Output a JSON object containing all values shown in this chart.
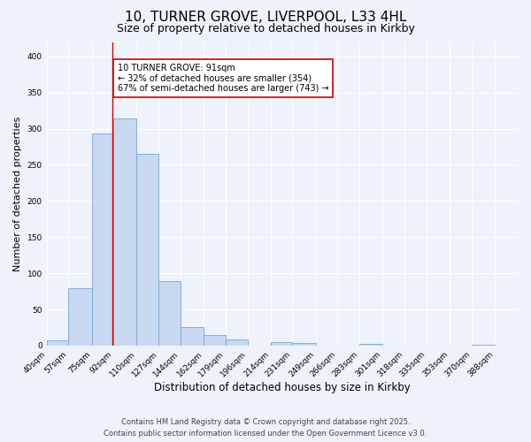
{
  "title": "10, TURNER GROVE, LIVERPOOL, L33 4HL",
  "subtitle": "Size of property relative to detached houses in Kirkby",
  "xlabel": "Distribution of detached houses by size in Kirkby",
  "ylabel": "Number of detached properties",
  "bin_labels": [
    "40sqm",
    "57sqm",
    "75sqm",
    "92sqm",
    "110sqm",
    "127sqm",
    "144sqm",
    "162sqm",
    "179sqm",
    "196sqm",
    "214sqm",
    "231sqm",
    "249sqm",
    "266sqm",
    "283sqm",
    "301sqm",
    "318sqm",
    "335sqm",
    "353sqm",
    "370sqm",
    "388sqm"
  ],
  "bar_heights": [
    7,
    79,
    293,
    314,
    265,
    89,
    26,
    15,
    8,
    0,
    5,
    4,
    0,
    0,
    2,
    0,
    0,
    0,
    0,
    1,
    0
  ],
  "bin_edges": [
    40,
    57,
    75,
    92,
    110,
    127,
    144,
    162,
    179,
    196,
    214,
    231,
    249,
    266,
    283,
    301,
    318,
    335,
    353,
    370,
    388,
    406
  ],
  "bar_color": "#c8d8f0",
  "bar_edge_color": "#7aa8d0",
  "vline_x": 91,
  "vline_color": "#cc0000",
  "annotation_title": "10 TURNER GROVE: 91sqm",
  "annotation_line1": "← 32% of detached houses are smaller (354)",
  "annotation_line2": "67% of semi-detached houses are larger (743) →",
  "annotation_box_color": "#ffffff",
  "annotation_box_edge": "#cc0000",
  "ylim": [
    0,
    420
  ],
  "yticks": [
    0,
    50,
    100,
    150,
    200,
    250,
    300,
    350,
    400
  ],
  "background_color": "#eef2fb",
  "grid_color": "#ffffff",
  "footer_line1": "Contains HM Land Registry data © Crown copyright and database right 2025.",
  "footer_line2": "Contains public sector information licensed under the Open Government Licence v3.0.",
  "title_fontsize": 11,
  "subtitle_fontsize": 9,
  "xlabel_fontsize": 8.5,
  "ylabel_fontsize": 8,
  "tick_fontsize": 6.5,
  "annotation_fontsize": 7,
  "footer_fontsize": 6
}
